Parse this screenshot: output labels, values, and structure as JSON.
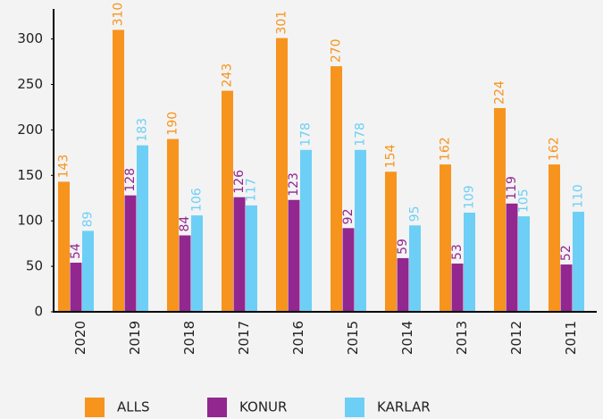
{
  "chart_data": {
    "type": "bar",
    "categories": [
      "2020",
      "2019",
      "2018",
      "2017",
      "2016",
      "2015",
      "2014",
      "2013",
      "2012",
      "2011"
    ],
    "series": [
      {
        "name": "ALLS",
        "color": "#f7941d",
        "values": [
          143,
          310,
          190,
          243,
          301,
          270,
          154,
          162,
          224,
          162
        ]
      },
      {
        "name": "KONUR",
        "color": "#92278f",
        "values": [
          54,
          128,
          84,
          126,
          123,
          92,
          59,
          53,
          119,
          52
        ]
      },
      {
        "name": "KARLAR",
        "color": "#6dcff6",
        "values": [
          89,
          183,
          106,
          117,
          178,
          178,
          95,
          109,
          105,
          110
        ]
      }
    ],
    "ylim": [
      0,
      333
    ],
    "yticks": [
      0,
      50,
      100,
      150,
      200,
      250,
      300
    ],
    "grid": false,
    "legend": "bottom"
  }
}
